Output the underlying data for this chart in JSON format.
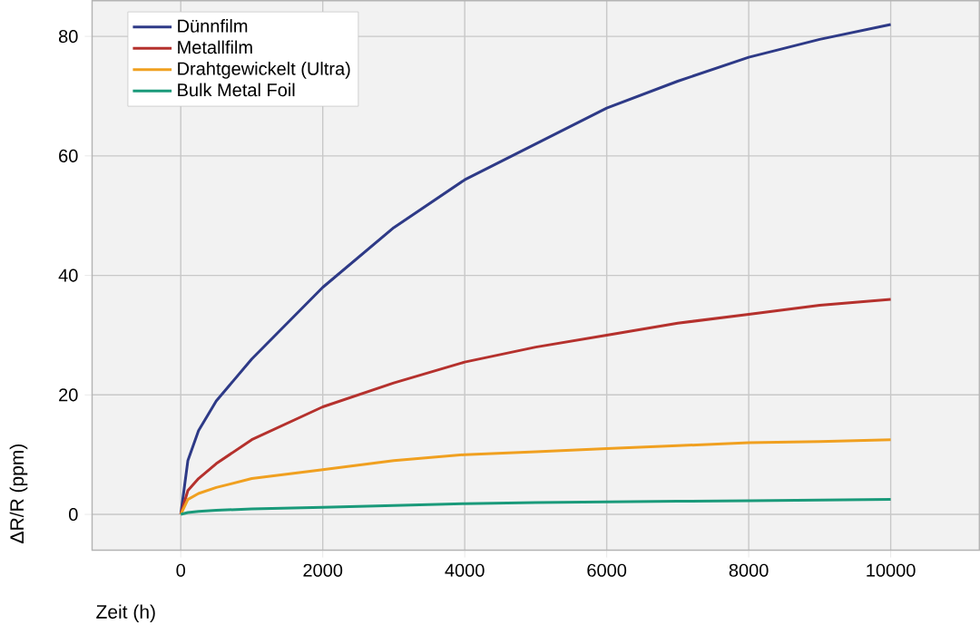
{
  "chart_data": {
    "type": "line",
    "xlabel": "Zeit (h)",
    "ylabel": "ΔR/R (ppm)",
    "x": [
      0,
      100,
      250,
      500,
      1000,
      2000,
      3000,
      4000,
      5000,
      6000,
      7000,
      8000,
      9000,
      10000
    ],
    "series": [
      {
        "name": "Dünnfilm",
        "color": "#2e3a87",
        "values": [
          0,
          9,
          14,
          19,
          26,
          38,
          48,
          56,
          62,
          68,
          72.5,
          76.5,
          79.5,
          82
        ]
      },
      {
        "name": "Metallfilm",
        "color": "#b5312d",
        "values": [
          0,
          4,
          6,
          8.5,
          12.5,
          18,
          22,
          25.5,
          28,
          30,
          32,
          33.5,
          35,
          36
        ]
      },
      {
        "name": "Drahtgewickelt (Ultra)",
        "color": "#f0a020",
        "values": [
          0,
          2.5,
          3.5,
          4.5,
          6,
          7.5,
          9,
          10,
          10.5,
          11,
          11.5,
          12,
          12.2,
          12.5
        ]
      },
      {
        "name": "Bulk Metal Foil",
        "color": "#1a9a7a",
        "values": [
          0,
          0.3,
          0.5,
          0.7,
          0.9,
          1.2,
          1.5,
          1.8,
          2,
          2.1,
          2.2,
          2.3,
          2.4,
          2.5
        ]
      }
    ],
    "xlim": [
      -1250,
      11250
    ],
    "ylim": [
      -6,
      86
    ],
    "xticks": [
      0,
      2000,
      4000,
      6000,
      8000,
      10000
    ],
    "yticks": [
      0,
      20,
      40,
      60,
      80
    ],
    "grid": true,
    "legend": "top left",
    "marker": "none",
    "line_style": "solid"
  }
}
